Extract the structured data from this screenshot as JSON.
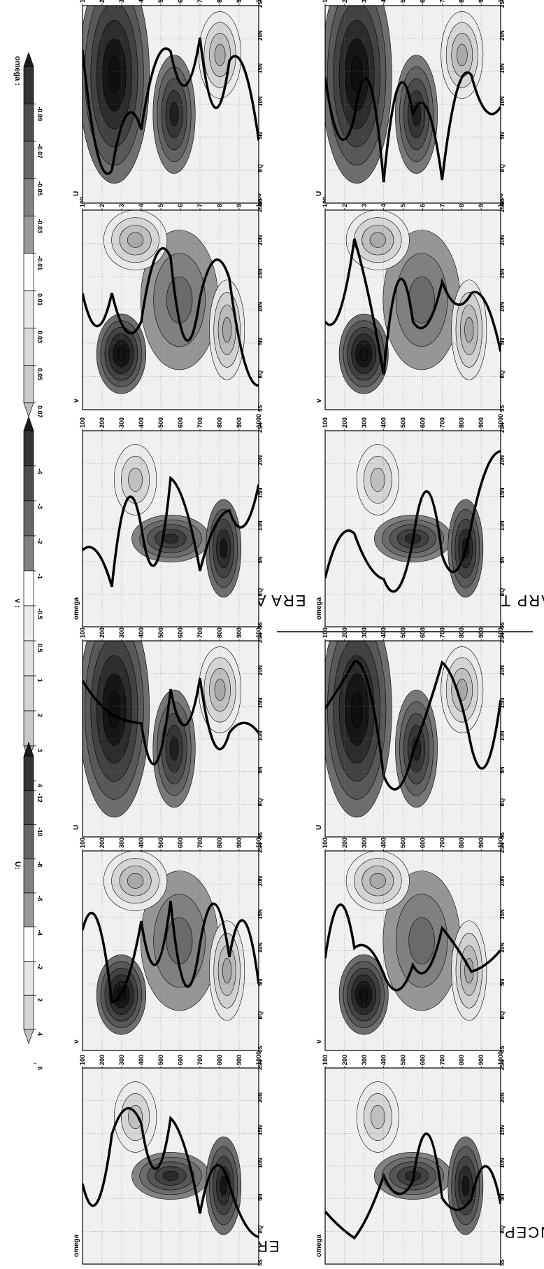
{
  "colorbars": {
    "omega": {
      "title": "omega :",
      "ticks": [
        "-0.09",
        "-0.07",
        "-0.05",
        "-0.03",
        "-0.01",
        "0.01",
        "0.03",
        "0.05",
        "0.07"
      ],
      "colors": [
        "#1a1a1a",
        "#333",
        "#4d4d4d",
        "#666",
        "#808080",
        "#999",
        "#fff",
        "#e6e6e6",
        "#d9d9d9",
        "#cccccc",
        "#bfbfbf"
      ]
    },
    "v": {
      "title": "v :",
      "ticks": [
        "-4",
        "-3",
        "-2",
        "-1",
        "-0.5",
        "0.5",
        "1",
        "2",
        "3",
        "4"
      ],
      "colors": [
        "#1a1a1a",
        "#333",
        "#4d4d4d",
        "#666",
        "#808080",
        "#fff",
        "#ececec",
        "#e0e0e0",
        "#d4d4d4",
        "#c8c8c8",
        "#bcbcbc"
      ]
    },
    "u": {
      "title": "U:",
      "ticks": [
        "-12",
        "-10",
        "-8",
        "-6",
        "-4",
        "-2",
        "2",
        "4",
        "6"
      ],
      "colors": [
        "#1a1a1a",
        "#333",
        "#4d4d4d",
        "#666",
        "#808080",
        "#999",
        "#fff",
        "#e6e6e6",
        "#d4d4d4",
        "#c2c2c2"
      ]
    }
  },
  "datasets": [
    "ERAI",
    "ERA AMMA",
    "NCEP GFS",
    "ARP TROP"
  ],
  "panel_titles": [
    "omega",
    "v",
    "U"
  ],
  "pressure_ticks": [
    "100",
    "200",
    "300",
    "400",
    "500",
    "600",
    "700",
    "800",
    "900",
    "1000"
  ],
  "lat_ticks": [
    "5S",
    "EQ",
    "5N",
    "10N",
    "15N",
    "20N",
    "25N"
  ]
}
